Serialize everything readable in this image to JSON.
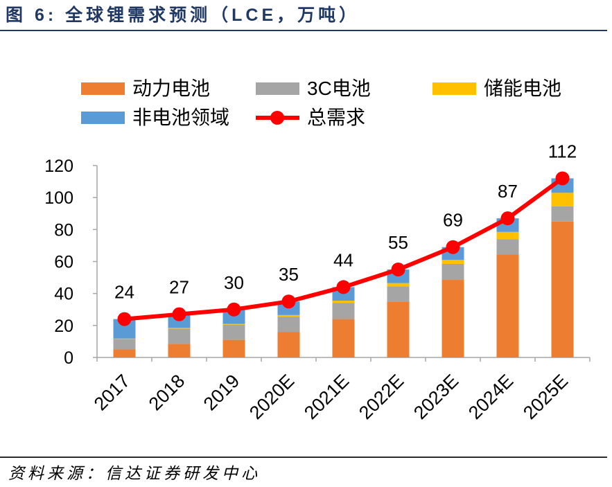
{
  "footer": {
    "source": "资料来源：信达证券研发中心"
  },
  "chart_data": {
    "type": "bar",
    "stacked": true,
    "title": "图 6: 全球锂需求预测（LCE，万吨）",
    "categories": [
      "2017",
      "2018",
      "2019",
      "2020E",
      "2021E",
      "2022E",
      "2023E",
      "2024E",
      "2025E"
    ],
    "ylim": [
      0,
      120
    ],
    "yticks": [
      0,
      20,
      40,
      60,
      80,
      100,
      120
    ],
    "grid": false,
    "legend_position": "top",
    "series": [
      {
        "name": "动力电池",
        "type": "bar",
        "color": "#ED7D31",
        "values": [
          5,
          8.5,
          11,
          16,
          24,
          35,
          48.5,
          64.5,
          85
        ]
      },
      {
        "name": "3C电池",
        "type": "bar",
        "color": "#A5A5A5",
        "values": [
          6.5,
          9.5,
          9.5,
          9.5,
          10,
          9.5,
          10,
          9.5,
          9.5
        ]
      },
      {
        "name": "储能电池",
        "type": "bar",
        "color": "#FFC000",
        "values": [
          0.3,
          0.5,
          0.5,
          1,
          1.5,
          2,
          2.5,
          4.5,
          8.5
        ]
      },
      {
        "name": "非电池领域",
        "type": "bar",
        "color": "#5B9BD5",
        "values": [
          12.2,
          8.5,
          9,
          8.5,
          8.5,
          8.5,
          8,
          8.5,
          9
        ]
      },
      {
        "name": "总需求",
        "type": "line",
        "color": "#FF0000",
        "values": [
          24,
          27,
          30,
          35,
          44,
          55,
          69,
          87,
          112
        ],
        "data_labels": true
      }
    ]
  }
}
